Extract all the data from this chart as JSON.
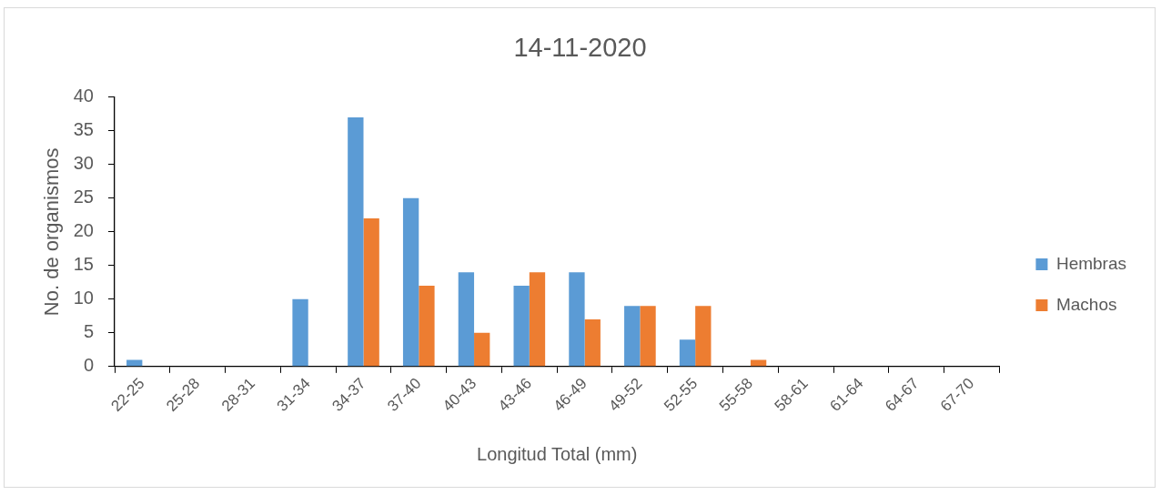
{
  "chart_data": {
    "type": "bar",
    "title": "14-11-2020",
    "xlabel": "Longitud Total (mm)",
    "ylabel": "No. de organismos",
    "categories": [
      "22-25",
      "25-28",
      "28-31",
      "31-34",
      "34-37",
      "37-40",
      "40-43",
      "43-46",
      "46-49",
      "49-52",
      "52-55",
      "55-58",
      "58-61",
      "61-64",
      "64-67",
      "67-70"
    ],
    "series": [
      {
        "name": "Hembras",
        "color": "#5b9bd5",
        "values": [
          1,
          0,
          0,
          10,
          37,
          25,
          14,
          12,
          14,
          9,
          4,
          0,
          0,
          0,
          0,
          0
        ]
      },
      {
        "name": "Machos",
        "color": "#ed7d31",
        "values": [
          0,
          0,
          0,
          0,
          22,
          12,
          5,
          14,
          7,
          9,
          9,
          1,
          0,
          0,
          0,
          0
        ]
      }
    ],
    "ylim": [
      0,
      40
    ],
    "yticks": [
      0,
      5,
      10,
      15,
      20,
      25,
      30,
      35,
      40
    ],
    "legend": "right"
  }
}
